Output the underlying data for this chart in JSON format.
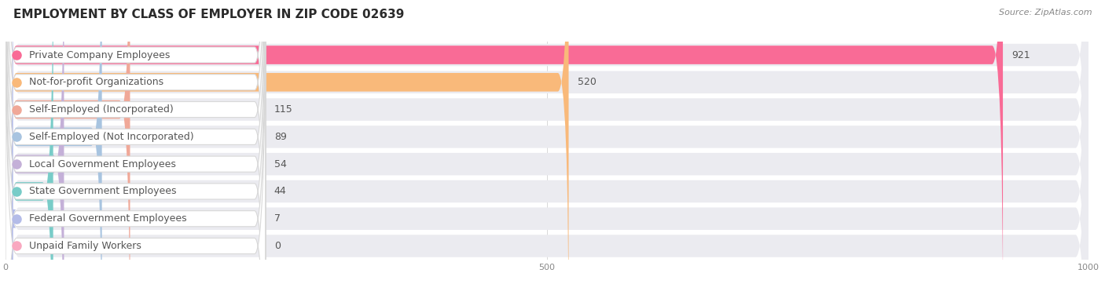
{
  "title": "EMPLOYMENT BY CLASS OF EMPLOYER IN ZIP CODE 02639",
  "source": "Source: ZipAtlas.com",
  "categories": [
    "Private Company Employees",
    "Not-for-profit Organizations",
    "Self-Employed (Incorporated)",
    "Self-Employed (Not Incorporated)",
    "Local Government Employees",
    "State Government Employees",
    "Federal Government Employees",
    "Unpaid Family Workers"
  ],
  "values": [
    921,
    520,
    115,
    89,
    54,
    44,
    7,
    0
  ],
  "bar_colors": [
    "#f96b96",
    "#f9b97a",
    "#f0a898",
    "#a8c4e0",
    "#c4b0d8",
    "#78ccc8",
    "#b4bce8",
    "#f9a8c0"
  ],
  "row_bg_color": "#ebebf0",
  "row_bg_colors": [
    "#ebebf0",
    "#ebebf0",
    "#ebebf0",
    "#ebebf0",
    "#ebebf0",
    "#ebebf0",
    "#ebebf0",
    "#ebebf0"
  ],
  "xlim": [
    0,
    1000
  ],
  "xticks": [
    0,
    500,
    1000
  ],
  "title_fontsize": 11,
  "source_fontsize": 8,
  "label_fontsize": 9,
  "value_fontsize": 9,
  "background_color": "#ffffff",
  "label_text_color": "#555555",
  "value_text_color": "#555555",
  "grid_color": "#d8d8d8",
  "tick_color": "#888888"
}
